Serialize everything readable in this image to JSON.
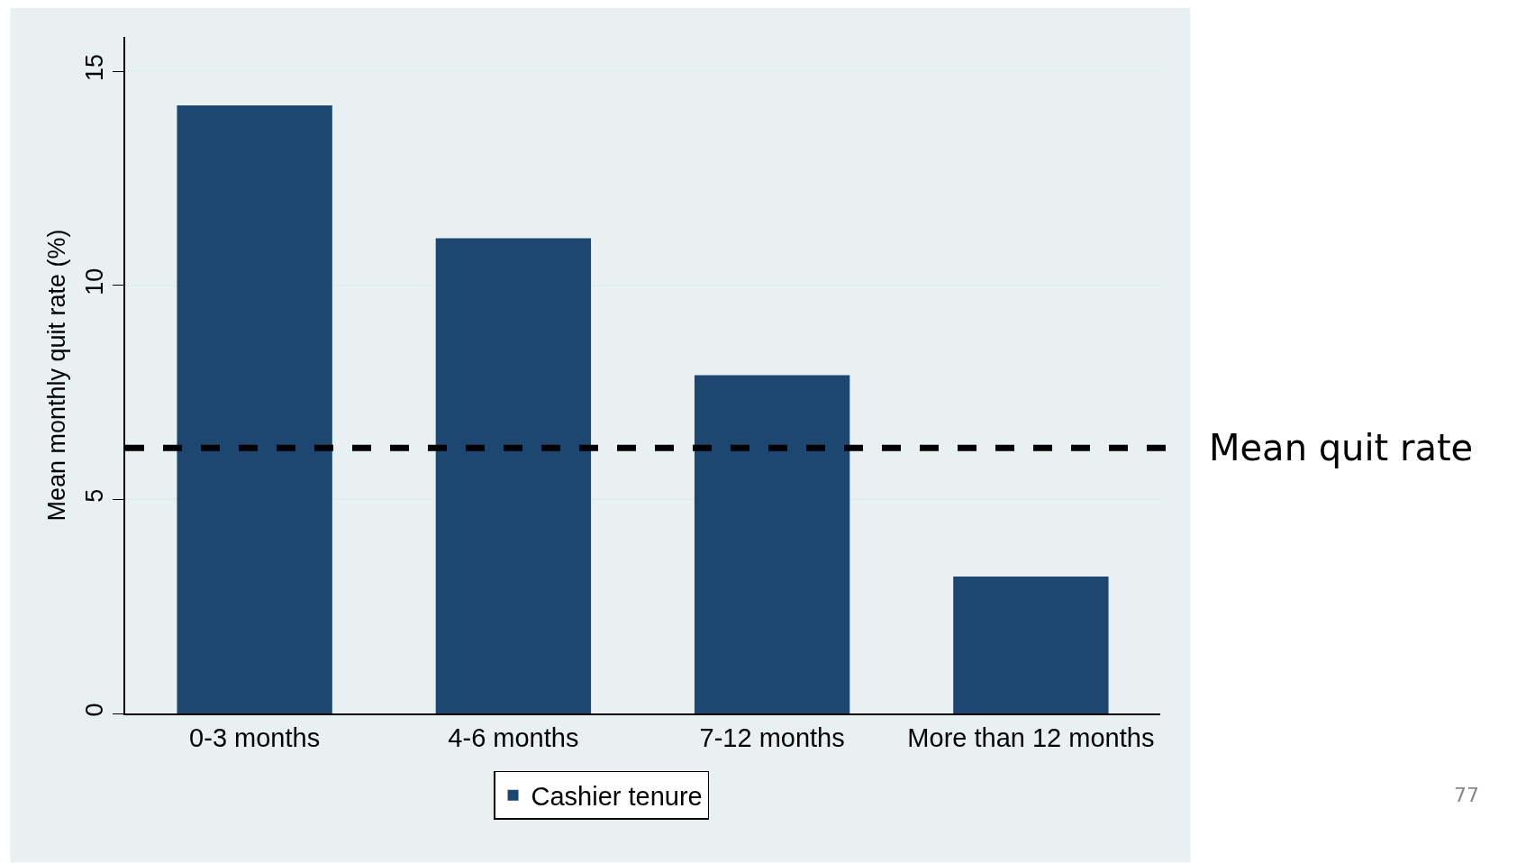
{
  "chart_data": {
    "type": "bar",
    "ylabel": "Mean monthly quit rate (%)",
    "categories": [
      "0-3 months",
      "4-6 months",
      "7-12 months",
      "More than 12 months"
    ],
    "series": [
      {
        "name": "Cashier tenure",
        "color": "#1d4770",
        "values": [
          14.2,
          11.1,
          7.9,
          3.2
        ]
      }
    ],
    "ylim": [
      0,
      15.8
    ],
    "yticks": [
      0,
      5,
      10,
      15
    ],
    "grid": "y",
    "legend": "bottom",
    "ref_lines": [
      {
        "axis": "y",
        "value": 6.2,
        "label": "Mean quit rate",
        "color": "#000000",
        "line_style": "dashed"
      }
    ],
    "annotations": [
      "77"
    ]
  }
}
